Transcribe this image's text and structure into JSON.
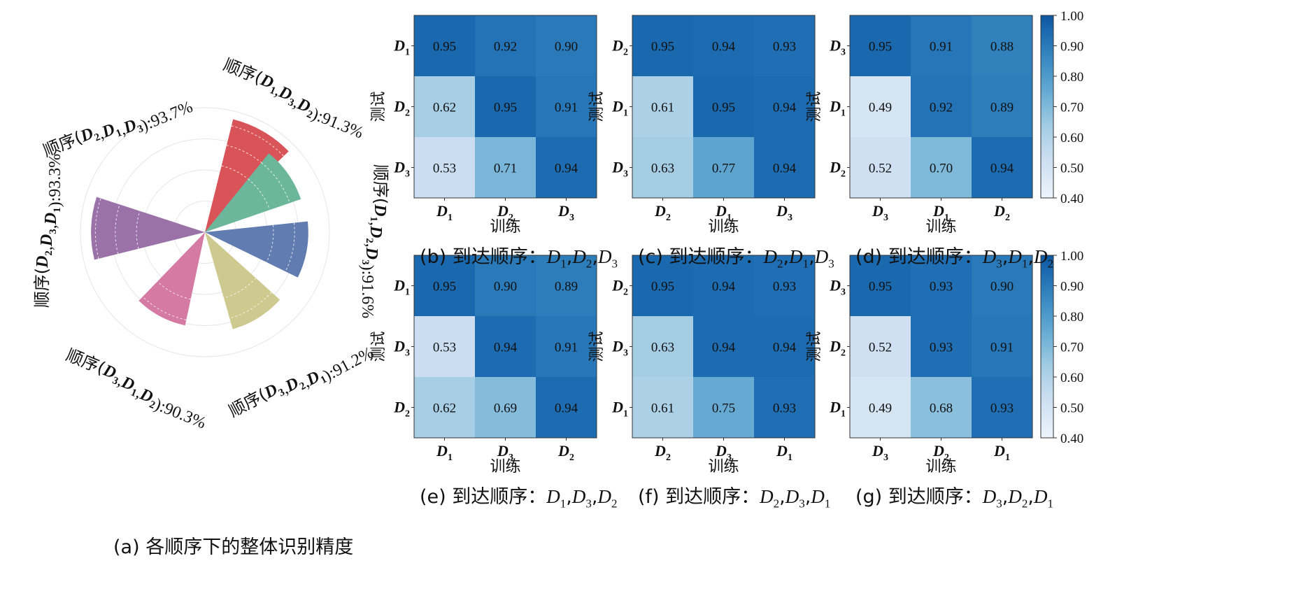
{
  "chart_data": [
    {
      "id": "a",
      "type": "polar-bar",
      "caption": "(a) 各顺序下的整体识别精度",
      "radial_range": [
        0,
        100
      ],
      "series": [
        {
          "order": [
            "D2",
            "D1",
            "D3"
          ],
          "value": 93.7,
          "prefix": "顺序",
          "suffix": ":93.7%",
          "color": "#d95459"
        },
        {
          "order": [
            "D1",
            "D3",
            "D2"
          ],
          "value": 91.3,
          "prefix": "顺序",
          "suffix": ":91.3%",
          "color": "#6cb79c"
        },
        {
          "order": [
            "D1",
            "D2",
            "D3"
          ],
          "value": 91.6,
          "prefix": "顺序",
          "suffix": ":91.6%",
          "color": "#607cb0"
        },
        {
          "order": [
            "D3",
            "D2",
            "D1"
          ],
          "value": 91.2,
          "prefix": "顺序",
          "suffix": ":91.2%",
          "color": "#cdc98f"
        },
        {
          "order": [
            "D3",
            "D1",
            "D2"
          ],
          "value": 90.3,
          "prefix": "顺序",
          "suffix": ":90.3%",
          "color": "#d47aa3"
        },
        {
          "order": [
            "D2",
            "D3",
            "D1"
          ],
          "value": 93.3,
          "prefix": "顺序",
          "suffix": ":93.3%",
          "color": "#9b72a8"
        }
      ]
    },
    {
      "id": "b",
      "type": "heatmap",
      "caption_prefix": "(b)  到达顺序：",
      "order": [
        "D1",
        "D2",
        "D3"
      ],
      "rows": [
        "D1",
        "D2",
        "D3"
      ],
      "cols": [
        "D1",
        "D2",
        "D3"
      ],
      "values": [
        [
          0.95,
          0.92,
          0.9
        ],
        [
          0.62,
          0.95,
          0.91
        ],
        [
          0.53,
          0.71,
          0.94
        ]
      ],
      "xlabel": "训练",
      "ylabel": "测试"
    },
    {
      "id": "c",
      "type": "heatmap",
      "caption_prefix": "(c)  到达顺序：",
      "order": [
        "D2",
        "D1",
        "D3"
      ],
      "rows": [
        "D2",
        "D1",
        "D3"
      ],
      "cols": [
        "D2",
        "D1",
        "D3"
      ],
      "values": [
        [
          0.95,
          0.94,
          0.93
        ],
        [
          0.61,
          0.95,
          0.94
        ],
        [
          0.63,
          0.77,
          0.94
        ]
      ],
      "xlabel": "训练",
      "ylabel": "测试"
    },
    {
      "id": "d",
      "type": "heatmap",
      "caption_prefix": "(d)  到达顺序：",
      "order": [
        "D3",
        "D1",
        "D2"
      ],
      "rows": [
        "D3",
        "D1",
        "D2"
      ],
      "cols": [
        "D3",
        "D1",
        "D2"
      ],
      "values": [
        [
          0.95,
          0.91,
          0.88
        ],
        [
          0.49,
          0.92,
          0.89
        ],
        [
          0.52,
          0.7,
          0.94
        ]
      ],
      "xlabel": "训练",
      "ylabel": "测试"
    },
    {
      "id": "e",
      "type": "heatmap",
      "caption_prefix": "(e)  到达顺序：",
      "order": [
        "D1",
        "D3",
        "D2"
      ],
      "rows": [
        "D1",
        "D3",
        "D2"
      ],
      "cols": [
        "D1",
        "D3",
        "D2"
      ],
      "values": [
        [
          0.95,
          0.9,
          0.89
        ],
        [
          0.53,
          0.94,
          0.91
        ],
        [
          0.62,
          0.69,
          0.94
        ]
      ],
      "xlabel": "训练",
      "ylabel": "测试"
    },
    {
      "id": "f",
      "type": "heatmap",
      "caption_prefix": "(f)  到达顺序：",
      "order": [
        "D2",
        "D3",
        "D1"
      ],
      "rows": [
        "D2",
        "D3",
        "D1"
      ],
      "cols": [
        "D2",
        "D3",
        "D1"
      ],
      "values": [
        [
          0.95,
          0.94,
          0.93
        ],
        [
          0.63,
          0.94,
          0.94
        ],
        [
          0.61,
          0.75,
          0.93
        ]
      ],
      "xlabel": "训练",
      "ylabel": "测试"
    },
    {
      "id": "g",
      "type": "heatmap",
      "caption_prefix": "(g)  到达顺序：",
      "order": [
        "D3",
        "D2",
        "D1"
      ],
      "rows": [
        "D3",
        "D2",
        "D1"
      ],
      "cols": [
        "D3",
        "D2",
        "D1"
      ],
      "values": [
        [
          0.95,
          0.93,
          0.9
        ],
        [
          0.52,
          0.93,
          0.91
        ],
        [
          0.49,
          0.68,
          0.93
        ]
      ],
      "xlabel": "训练",
      "ylabel": "测试"
    }
  ],
  "colorbar": {
    "range": [
      0.4,
      1.0
    ],
    "ticks": [
      "0.40",
      "0.50",
      "0.60",
      "0.70",
      "0.80",
      "0.90",
      "1.00"
    ],
    "colormap": "Blues"
  }
}
